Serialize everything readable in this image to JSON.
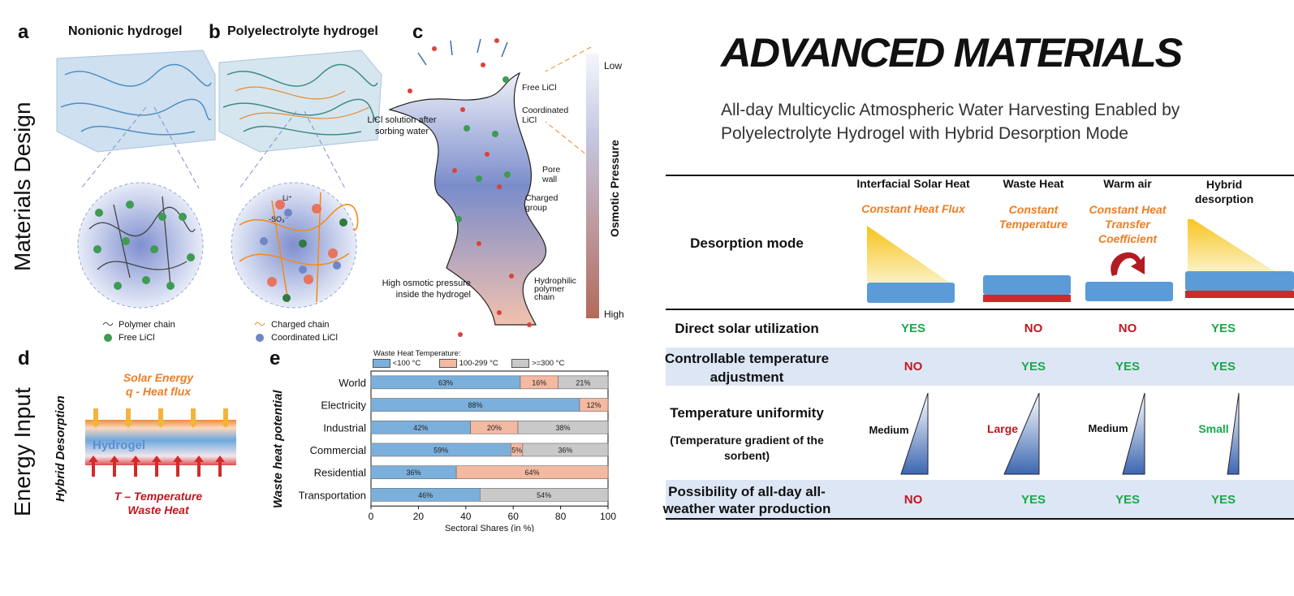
{
  "left": {
    "panel_a": {
      "letter": "a",
      "title": "Nonionic hydrogel",
      "legend": [
        "Polymer chain",
        "Free LiCl"
      ]
    },
    "panel_b": {
      "letter": "b",
      "title": "Polyelectrolyte hydrogel",
      "legend": [
        "Charged chain",
        "Coordinated LiCl"
      ],
      "labels": {
        "li": "Li⁺",
        "so3": "-SO₃⁻"
      }
    },
    "panel_c": {
      "letter": "c",
      "labels": {
        "free": "Free LiCl",
        "coordinated": "Coordinated LiCl",
        "solution": "LiCl solution after sorbing water",
        "pore": "Pore wall",
        "charged": "Charged group",
        "high_osm": "High osmotic pressure inside the hydrogel",
        "hydrophilic": "Hydrophilic polymer chain"
      },
      "scale": {
        "title": "Osmotic Pressure",
        "low": "Low",
        "high": "High"
      }
    },
    "side_titles": {
      "design": "Materials Design",
      "energy": "Energy Input"
    },
    "panel_d": {
      "letter": "d",
      "side": "Hybrid Desorption",
      "top1": "Solar Energy",
      "top2": "q - Heat flux",
      "middle": "Hydrogel",
      "bottom1": "T – Temperature",
      "bottom2": "Waste Heat"
    },
    "panel_e": {
      "letter": "e",
      "ylabel": "Waste heat potential"
    }
  },
  "chart_data": {
    "type": "bar",
    "stacked": true,
    "orientation": "horizontal",
    "legend_title": "Waste Heat Temperature:",
    "categories": [
      "World",
      "Electricity",
      "Industrial",
      "Commercial",
      "Residential",
      "Transportation"
    ],
    "series": [
      {
        "name": "<100 °C",
        "color": "#7bb0dc",
        "values": [
          63,
          88,
          42,
          59,
          36,
          46
        ],
        "labels": [
          "63%",
          "88%",
          "42%",
          "59%",
          "36%",
          "46%"
        ]
      },
      {
        "name": "100-299 °C",
        "color": "#f4b9a1",
        "values": [
          16,
          12,
          20,
          5,
          64,
          0
        ],
        "labels": [
          "16%",
          "12%",
          "20%",
          "5%",
          "64%",
          ""
        ]
      },
      {
        "name": ">=300 °C",
        "color": "#c9c9c9",
        "values": [
          21,
          0,
          38,
          36,
          0,
          54
        ],
        "labels": [
          "21%",
          "",
          "38%",
          "36%",
          "",
          "54%"
        ]
      }
    ],
    "xlabel": "Sectoral Shares (in %)",
    "ylabel": "Waste heat potential",
    "xlim": [
      0,
      100
    ],
    "xticks": [
      "0",
      "20",
      "40",
      "60",
      "80",
      "100"
    ]
  },
  "right": {
    "journal": "ADVANCED MATERIALS",
    "title_line1": "All-day Multicyclic Atmospheric Water Harvesting Enabled by",
    "title_line2": "Polyelectrolyte Hydrogel with Hybrid Desorption Mode",
    "columns": [
      "Interfacial Solar Heat",
      "Waste Heat",
      "Warm air",
      "Hybrid desorption"
    ],
    "modes": [
      "Constant Heat Flux",
      "Constant Temperature",
      "Constant Heat Transfer Coefficient",
      ""
    ],
    "rows": {
      "desorption_mode": "Desorption mode",
      "direct_solar": {
        "label": "Direct solar utilization",
        "values": [
          "YES",
          "NO",
          "NO",
          "YES"
        ]
      },
      "controllable": {
        "label": "Controllable temperature adjustment",
        "values": [
          "NO",
          "YES",
          "YES",
          "YES"
        ]
      },
      "uniformity": {
        "label": "Temperature uniformity",
        "sub": "(Temperature gradient of the sorbent)",
        "values": [
          "Medium",
          "Large",
          "Medium",
          "Small"
        ]
      },
      "all_day": {
        "label": "Possibility of all-day all-weather water production",
        "values": [
          "NO",
          "YES",
          "YES",
          "YES"
        ]
      }
    },
    "colors": {
      "yes": "#1aa84b",
      "no": "#c0161f",
      "orange": "#ee7d22",
      "row_bg": "#dde6f5"
    }
  }
}
